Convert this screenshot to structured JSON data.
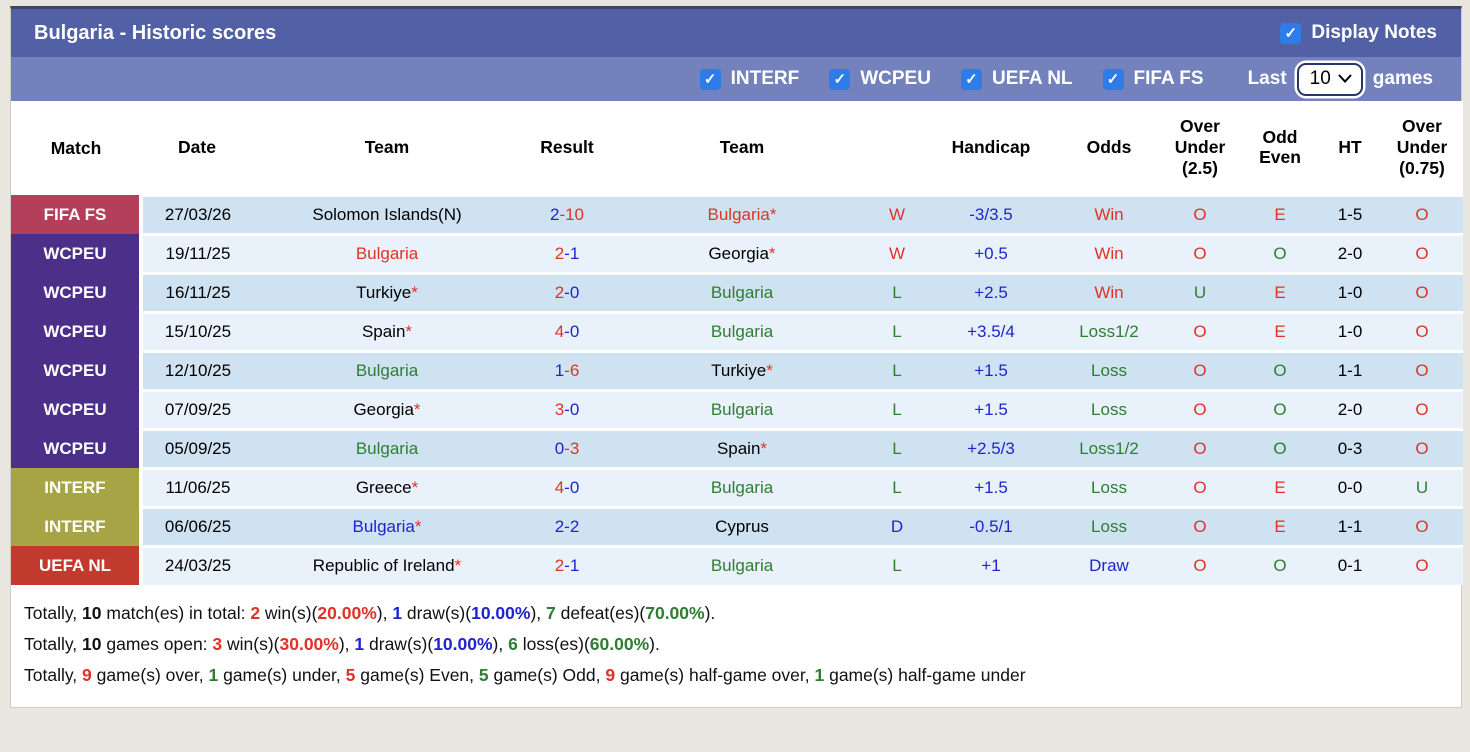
{
  "colors": {
    "red": "#e03226",
    "green": "#2e7d32",
    "blue": "#1f24cc",
    "black": "#111111",
    "title_bar": "#5260a6",
    "filter_bar": "#7381bd",
    "row_dark": "#cfe2f2",
    "row_light": "#e9f2fa",
    "badge_fifa": "#b43f5a",
    "badge_wcpeu": "#4b2f88",
    "badge_interf": "#a6a444",
    "badge_uefa": "#c23a2d",
    "checkbox_blue": "#2e7ce8",
    "page_bg": "#e9e6e0"
  },
  "header": {
    "title": "Bulgaria - Historic scores",
    "display_notes_label": "Display Notes",
    "display_notes_checked": true
  },
  "filters": {
    "competitions": [
      {
        "label": "INTERF",
        "checked": true
      },
      {
        "label": "WCPEU",
        "checked": true
      },
      {
        "label": "UEFA NL",
        "checked": true
      },
      {
        "label": "FIFA FS",
        "checked": true
      }
    ],
    "last_label": "Last",
    "games_count": "10",
    "games_label": "games"
  },
  "table": {
    "columns": [
      "Match",
      "Date",
      "Team",
      "Result",
      "Team",
      "",
      "Handicap",
      "Odds",
      "Over Under (2.5)",
      "Odd Even",
      "HT",
      "Over Under (0.75)"
    ],
    "rows": [
      {
        "badge": "FIFA FS",
        "badge_color": "badge_fifa",
        "date": "27/03/26",
        "team1": {
          "name": "Solomon Islands(N)",
          "color": "black",
          "star": false
        },
        "score1": "2",
        "score1_color": "blue",
        "score2": "10",
        "score2_color": "red",
        "team2": {
          "name": "Bulgaria",
          "color": "red",
          "star": true
        },
        "wld": {
          "t": "W",
          "c": "red"
        },
        "handicap": "-3/3.5",
        "odds": {
          "t": "Win",
          "c": "red"
        },
        "ou25": {
          "t": "O",
          "c": "red"
        },
        "oe": {
          "t": "E",
          "c": "red"
        },
        "ht": "1-5",
        "ou075": {
          "t": "O",
          "c": "red"
        }
      },
      {
        "badge": "WCPEU",
        "badge_color": "badge_wcpeu",
        "date": "19/11/25",
        "team1": {
          "name": "Bulgaria",
          "color": "red",
          "star": false
        },
        "score1": "2",
        "score1_color": "red",
        "score2": "1",
        "score2_color": "blue",
        "team2": {
          "name": "Georgia",
          "color": "black",
          "star": true
        },
        "wld": {
          "t": "W",
          "c": "red"
        },
        "handicap": "+0.5",
        "odds": {
          "t": "Win",
          "c": "red"
        },
        "ou25": {
          "t": "O",
          "c": "red"
        },
        "oe": {
          "t": "O",
          "c": "green"
        },
        "ht": "2-0",
        "ou075": {
          "t": "O",
          "c": "red"
        }
      },
      {
        "badge": "WCPEU",
        "badge_color": "badge_wcpeu",
        "date": "16/11/25",
        "team1": {
          "name": "Turkiye",
          "color": "black",
          "star": true
        },
        "score1": "2",
        "score1_color": "red",
        "score2": "0",
        "score2_color": "blue",
        "team2": {
          "name": "Bulgaria",
          "color": "green",
          "star": false
        },
        "wld": {
          "t": "L",
          "c": "green"
        },
        "handicap": "+2.5",
        "odds": {
          "t": "Win",
          "c": "red"
        },
        "ou25": {
          "t": "U",
          "c": "green"
        },
        "oe": {
          "t": "E",
          "c": "red"
        },
        "ht": "1-0",
        "ou075": {
          "t": "O",
          "c": "red"
        }
      },
      {
        "badge": "WCPEU",
        "badge_color": "badge_wcpeu",
        "date": "15/10/25",
        "team1": {
          "name": "Spain",
          "color": "black",
          "star": true
        },
        "score1": "4",
        "score1_color": "red",
        "score2": "0",
        "score2_color": "blue",
        "team2": {
          "name": "Bulgaria",
          "color": "green",
          "star": false
        },
        "wld": {
          "t": "L",
          "c": "green"
        },
        "handicap": "+3.5/4",
        "odds": {
          "t": "Loss1/2",
          "c": "green"
        },
        "ou25": {
          "t": "O",
          "c": "red"
        },
        "oe": {
          "t": "E",
          "c": "red"
        },
        "ht": "1-0",
        "ou075": {
          "t": "O",
          "c": "red"
        }
      },
      {
        "badge": "WCPEU",
        "badge_color": "badge_wcpeu",
        "date": "12/10/25",
        "team1": {
          "name": "Bulgaria",
          "color": "green",
          "star": false
        },
        "score1": "1",
        "score1_color": "blue",
        "score2": "6",
        "score2_color": "red",
        "team2": {
          "name": "Turkiye",
          "color": "black",
          "star": true
        },
        "wld": {
          "t": "L",
          "c": "green"
        },
        "handicap": "+1.5",
        "odds": {
          "t": "Loss",
          "c": "green"
        },
        "ou25": {
          "t": "O",
          "c": "red"
        },
        "oe": {
          "t": "O",
          "c": "green"
        },
        "ht": "1-1",
        "ou075": {
          "t": "O",
          "c": "red"
        }
      },
      {
        "badge": "WCPEU",
        "badge_color": "badge_wcpeu",
        "date": "07/09/25",
        "team1": {
          "name": "Georgia",
          "color": "black",
          "star": true
        },
        "score1": "3",
        "score1_color": "red",
        "score2": "0",
        "score2_color": "blue",
        "team2": {
          "name": "Bulgaria",
          "color": "green",
          "star": false
        },
        "wld": {
          "t": "L",
          "c": "green"
        },
        "handicap": "+1.5",
        "odds": {
          "t": "Loss",
          "c": "green"
        },
        "ou25": {
          "t": "O",
          "c": "red"
        },
        "oe": {
          "t": "O",
          "c": "green"
        },
        "ht": "2-0",
        "ou075": {
          "t": "O",
          "c": "red"
        }
      },
      {
        "badge": "WCPEU",
        "badge_color": "badge_wcpeu",
        "date": "05/09/25",
        "team1": {
          "name": "Bulgaria",
          "color": "green",
          "star": false
        },
        "score1": "0",
        "score1_color": "blue",
        "score2": "3",
        "score2_color": "red",
        "team2": {
          "name": "Spain",
          "color": "black",
          "star": true
        },
        "wld": {
          "t": "L",
          "c": "green"
        },
        "handicap": "+2.5/3",
        "odds": {
          "t": "Loss1/2",
          "c": "green"
        },
        "ou25": {
          "t": "O",
          "c": "red"
        },
        "oe": {
          "t": "O",
          "c": "green"
        },
        "ht": "0-3",
        "ou075": {
          "t": "O",
          "c": "red"
        }
      },
      {
        "badge": "INTERF",
        "badge_color": "badge_interf",
        "date": "11/06/25",
        "team1": {
          "name": "Greece",
          "color": "black",
          "star": true
        },
        "score1": "4",
        "score1_color": "red",
        "score2": "0",
        "score2_color": "blue",
        "team2": {
          "name": "Bulgaria",
          "color": "green",
          "star": false
        },
        "wld": {
          "t": "L",
          "c": "green"
        },
        "handicap": "+1.5",
        "odds": {
          "t": "Loss",
          "c": "green"
        },
        "ou25": {
          "t": "O",
          "c": "red"
        },
        "oe": {
          "t": "E",
          "c": "red"
        },
        "ht": "0-0",
        "ou075": {
          "t": "U",
          "c": "green"
        }
      },
      {
        "badge": "INTERF",
        "badge_color": "badge_interf",
        "date": "06/06/25",
        "team1": {
          "name": "Bulgaria",
          "color": "blue",
          "star": true
        },
        "score1": "2",
        "score1_color": "blue",
        "score2": "2",
        "score2_color": "blue",
        "team2": {
          "name": "Cyprus",
          "color": "black",
          "star": false
        },
        "wld": {
          "t": "D",
          "c": "blue"
        },
        "handicap": "-0.5/1",
        "odds": {
          "t": "Loss",
          "c": "green"
        },
        "ou25": {
          "t": "O",
          "c": "red"
        },
        "oe": {
          "t": "E",
          "c": "red"
        },
        "ht": "1-1",
        "ou075": {
          "t": "O",
          "c": "red"
        }
      },
      {
        "badge": "UEFA NL",
        "badge_color": "badge_uefa",
        "date": "24/03/25",
        "team1": {
          "name": "Republic of Ireland",
          "color": "black",
          "star": true
        },
        "score1": "2",
        "score1_color": "red",
        "score2": "1",
        "score2_color": "blue",
        "team2": {
          "name": "Bulgaria",
          "color": "green",
          "star": false
        },
        "wld": {
          "t": "L",
          "c": "green"
        },
        "handicap": "+1",
        "odds": {
          "t": "Draw",
          "c": "blue"
        },
        "ou25": {
          "t": "O",
          "c": "red"
        },
        "oe": {
          "t": "O",
          "c": "green"
        },
        "ht": "0-1",
        "ou075": {
          "t": "O",
          "c": "red"
        }
      }
    ]
  },
  "summary": {
    "lines": [
      [
        {
          "t": "Totally, "
        },
        {
          "t": "10",
          "b": true
        },
        {
          "t": " match(es) in total: "
        },
        {
          "t": "2",
          "c": "red",
          "b": true
        },
        {
          "t": " win(s)("
        },
        {
          "t": "20.00%",
          "c": "red",
          "b": true
        },
        {
          "t": "), "
        },
        {
          "t": "1",
          "c": "blue",
          "b": true
        },
        {
          "t": " draw(s)("
        },
        {
          "t": "10.00%",
          "c": "blue",
          "b": true
        },
        {
          "t": "), "
        },
        {
          "t": "7",
          "c": "green",
          "b": true
        },
        {
          "t": " defeat(es)("
        },
        {
          "t": "70.00%",
          "c": "green",
          "b": true
        },
        {
          "t": ")."
        }
      ],
      [
        {
          "t": "Totally, "
        },
        {
          "t": "10",
          "b": true
        },
        {
          "t": " games open: "
        },
        {
          "t": "3",
          "c": "red",
          "b": true
        },
        {
          "t": " win(s)("
        },
        {
          "t": "30.00%",
          "c": "red",
          "b": true
        },
        {
          "t": "), "
        },
        {
          "t": "1",
          "c": "blue",
          "b": true
        },
        {
          "t": " draw(s)("
        },
        {
          "t": "10.00%",
          "c": "blue",
          "b": true
        },
        {
          "t": "), "
        },
        {
          "t": "6",
          "c": "green",
          "b": true
        },
        {
          "t": " loss(es)("
        },
        {
          "t": "60.00%",
          "c": "green",
          "b": true
        },
        {
          "t": ")."
        }
      ],
      [
        {
          "t": "Totally, "
        },
        {
          "t": "9",
          "c": "red",
          "b": true
        },
        {
          "t": " game(s) over, "
        },
        {
          "t": "1",
          "c": "green",
          "b": true
        },
        {
          "t": " game(s) under, "
        },
        {
          "t": "5",
          "c": "red",
          "b": true
        },
        {
          "t": " game(s) Even, "
        },
        {
          "t": "5",
          "c": "green",
          "b": true
        },
        {
          "t": " game(s) Odd, "
        },
        {
          "t": "9",
          "c": "red",
          "b": true
        },
        {
          "t": " game(s) half-game over, "
        },
        {
          "t": "1",
          "c": "green",
          "b": true
        },
        {
          "t": " game(s) half-game under"
        }
      ]
    ]
  }
}
